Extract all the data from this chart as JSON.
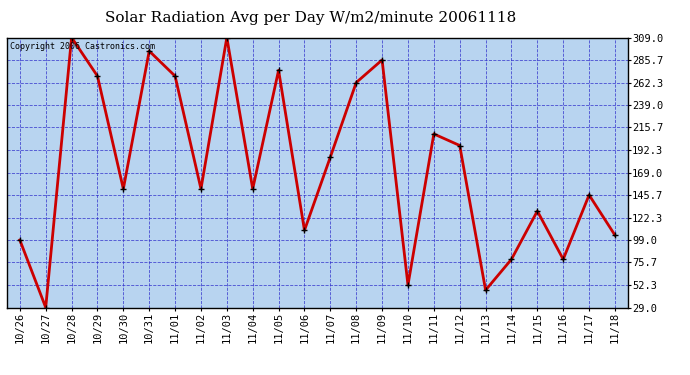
{
  "title": "Solar Radiation Avg per Day W/m2/minute 20061118",
  "copyright": "Copyright 2006 Castronics.com",
  "dates": [
    "10/26",
    "10/27",
    "10/28",
    "10/29",
    "10/30",
    "10/31",
    "11/01",
    "11/02",
    "11/03",
    "11/04",
    "11/05",
    "11/06",
    "11/07",
    "11/08",
    "11/09",
    "11/10",
    "11/11",
    "11/12",
    "11/13",
    "11/14",
    "11/15",
    "11/16",
    "11/17",
    "11/18"
  ],
  "values": [
    99.0,
    29.0,
    309.0,
    269.0,
    152.0,
    295.0,
    269.0,
    152.0,
    309.0,
    152.0,
    275.0,
    109.0,
    185.0,
    262.3,
    285.7,
    52.3,
    209.0,
    197.0,
    47.0,
    79.0,
    129.0,
    79.0,
    145.7,
    104.0
  ],
  "ylim_min": 29.0,
  "ylim_max": 309.0,
  "yticks": [
    29.0,
    52.3,
    75.7,
    99.0,
    122.3,
    145.7,
    169.0,
    192.3,
    215.7,
    239.0,
    262.3,
    285.7,
    309.0
  ],
  "line_color": "#cc0000",
  "marker_color": "#000000",
  "bg_color": "#b8d4f0",
  "fig_bg_color": "#ffffff",
  "grid_color": "#3333cc",
  "title_fontsize": 11,
  "copyright_fontsize": 6,
  "tick_fontsize": 7.5
}
